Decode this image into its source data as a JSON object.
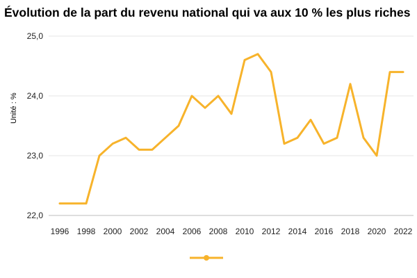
{
  "chart_data": {
    "type": "line",
    "title": "Évolution de la part du revenu national qui va aux 10 % les plus riches",
    "xlabel": "",
    "ylabel": "Unité : %",
    "ylim": [
      22.0,
      25.0
    ],
    "yticks": [
      "22,0",
      "23,0",
      "24,0",
      "25,0"
    ],
    "xlim": [
      1996,
      2022
    ],
    "xticks": [
      "1996",
      "1998",
      "2000",
      "2002",
      "2004",
      "2006",
      "2008",
      "2010",
      "2012",
      "2014",
      "2016",
      "2018",
      "2020",
      "2022"
    ],
    "grid": true,
    "legend": "bottom-center",
    "series": [
      {
        "color": "#f7b32b",
        "x": [
          1996,
          1997,
          1998,
          1999,
          2000,
          2001,
          2002,
          2003,
          2004,
          2005,
          2006,
          2007,
          2008,
          2009,
          2010,
          2011,
          2012,
          2013,
          2014,
          2015,
          2016,
          2017,
          2018,
          2019,
          2020,
          2021,
          2022
        ],
        "values": [
          22.2,
          22.2,
          22.2,
          23.0,
          23.2,
          23.3,
          23.1,
          23.1,
          23.3,
          23.5,
          24.0,
          23.8,
          24.0,
          23.7,
          24.6,
          24.7,
          24.4,
          23.2,
          23.3,
          23.6,
          23.2,
          23.3,
          24.2,
          23.3,
          23.0,
          24.4,
          24.4
        ]
      }
    ]
  }
}
